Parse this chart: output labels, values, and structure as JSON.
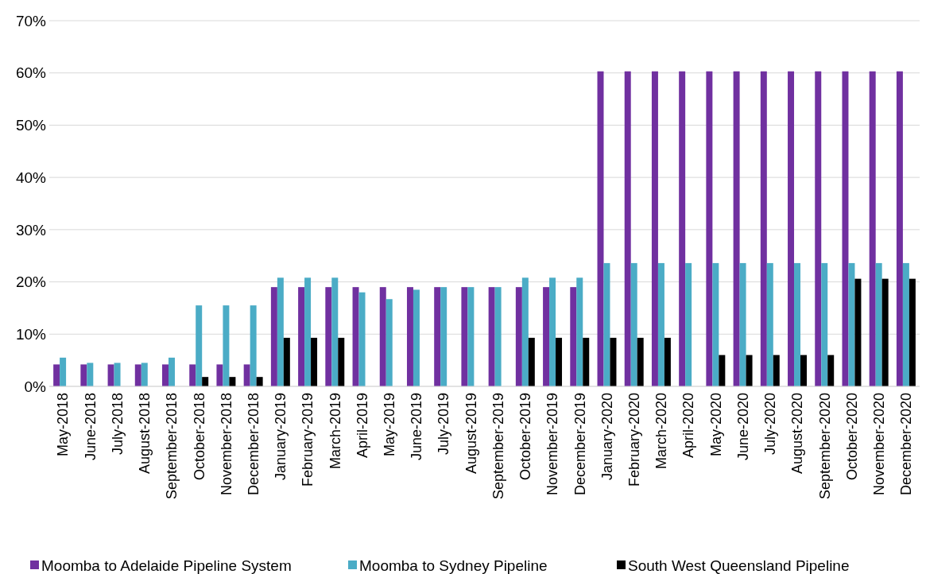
{
  "chart_data": {
    "type": "bar",
    "categories": [
      "May-2018",
      "June-2018",
      "July-2018",
      "August-2018",
      "September-2018",
      "October-2018",
      "November-2018",
      "December-2018",
      "January-2019",
      "February-2019",
      "March-2019",
      "April-2019",
      "May-2019",
      "June-2019",
      "July-2019",
      "August-2019",
      "September-2019",
      "October-2019",
      "November-2019",
      "December-2019",
      "January-2020",
      "February-2020",
      "March-2020",
      "April-2020",
      "May-2020",
      "June-2020",
      "July-2020",
      "August-2020",
      "September-2020",
      "October-2020",
      "November-2020",
      "December-2020"
    ],
    "series": [
      {
        "name": "Moomba to Adelaide Pipeline System",
        "color": "#7030a0",
        "values": [
          4.2,
          4.2,
          4.2,
          4.2,
          4.2,
          4.2,
          4.2,
          4.2,
          19,
          19,
          19,
          19,
          19,
          19,
          19,
          19,
          19,
          19,
          19,
          19,
          60.3,
          60.3,
          60.3,
          60.3,
          60.3,
          60.3,
          60.3,
          60.3,
          60.3,
          60.3,
          60.3,
          60.3
        ]
      },
      {
        "name": "Moomba to Sydney Pipeline",
        "color": "#4bacc6",
        "values": [
          5.5,
          4.5,
          4.5,
          4.5,
          5.5,
          15.5,
          15.5,
          15.5,
          20.8,
          20.8,
          20.8,
          18,
          16.7,
          18.5,
          19,
          19,
          19,
          20.8,
          20.8,
          20.8,
          23.6,
          23.6,
          23.6,
          23.6,
          23.6,
          23.6,
          23.6,
          23.6,
          23.6,
          23.6,
          23.6,
          23.6
        ]
      },
      {
        "name": "South West Queensland Pipeline",
        "color": "#000000",
        "values": [
          null,
          null,
          null,
          null,
          null,
          1.8,
          1.8,
          1.8,
          9.3,
          9.3,
          9.3,
          null,
          null,
          null,
          null,
          null,
          null,
          9.3,
          9.3,
          9.3,
          9.3,
          9.3,
          9.3,
          null,
          6,
          6,
          6,
          6,
          6,
          20.6,
          20.6,
          20.6
        ]
      }
    ],
    "ylim": [
      0,
      70
    ],
    "yticks": [
      {
        "value": 0,
        "label": "0%"
      },
      {
        "value": 10,
        "label": "10%"
      },
      {
        "value": 20,
        "label": "20%"
      },
      {
        "value": 30,
        "label": "30%"
      },
      {
        "value": 40,
        "label": "40%"
      },
      {
        "value": 50,
        "label": "50%"
      },
      {
        "value": 60,
        "label": "60%"
      },
      {
        "value": 70,
        "label": "70%"
      }
    ],
    "grid": "y",
    "legend": "bottom"
  }
}
